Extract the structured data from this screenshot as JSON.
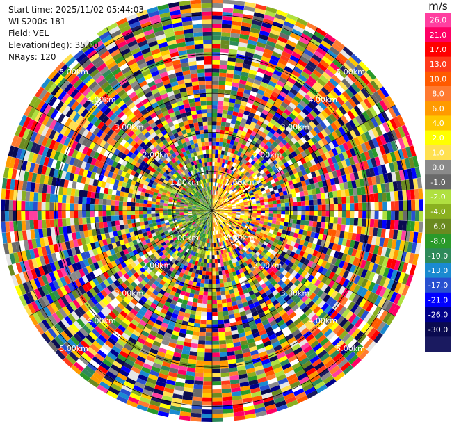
{
  "info": {
    "start_time": "Start time: 2025/11/02 05:44:03",
    "station": "WLS200s-181",
    "field": "Field: VEL",
    "elevation": "Elevation(deg): 35.00",
    "nrays": "NRays: 120"
  },
  "colorbar": {
    "unit": "m/s",
    "levels": [
      {
        "label": "26.0",
        "color": "#ff3fa0"
      },
      {
        "label": "21.0",
        "color": "#ff0064"
      },
      {
        "label": "17.0",
        "color": "#ff0000"
      },
      {
        "label": "13.0",
        "color": "#ff3a1a"
      },
      {
        "label": "10.0",
        "color": "#ff5a00"
      },
      {
        "label": "8.0",
        "color": "#ff7a30"
      },
      {
        "label": "6.0",
        "color": "#ff9a00"
      },
      {
        "label": "4.0",
        "color": "#ffc800"
      },
      {
        "label": "2.0",
        "color": "#ffff00"
      },
      {
        "label": "1.0",
        "color": "#ffe050"
      },
      {
        "label": "0.0",
        "color": "#8a8a8a"
      },
      {
        "label": "-1.0",
        "color": "#6a6a6a"
      },
      {
        "label": "-2.0",
        "color": "#b0e040"
      },
      {
        "label": "-4.0",
        "color": "#8ab020"
      },
      {
        "label": "-6.0",
        "color": "#6a8a20"
      },
      {
        "label": "-8.0",
        "color": "#2a9a2a"
      },
      {
        "label": "-10.0",
        "color": "#2e8a5a"
      },
      {
        "label": "-13.0",
        "color": "#1a8ad0"
      },
      {
        "label": "-17.0",
        "color": "#2850d0"
      },
      {
        "label": "-21.0",
        "color": "#0000ff"
      },
      {
        "label": "-26.0",
        "color": "#00008a"
      },
      {
        "label": "-30.0",
        "color": "#0a0a50"
      },
      {
        "label": "",
        "color": "#1a1a60"
      }
    ]
  },
  "chart_data": {
    "type": "heatmap",
    "subtype": "polar-ppi",
    "field": "VEL",
    "unit": "m/s",
    "elevation_deg": 35.0,
    "nrays": 120,
    "range_rings_km": [
      1.0,
      2.0,
      3.0,
      4.0,
      5.0
    ],
    "range_ring_labels": [
      "1.00km",
      "2.00km",
      "3.00km",
      "4.00km",
      "5.00km"
    ],
    "colorbar_ticks": [
      26.0,
      21.0,
      17.0,
      13.0,
      10.0,
      8.0,
      6.0,
      4.0,
      2.0,
      1.0,
      0.0,
      -1.0,
      -2.0,
      -4.0,
      -6.0,
      -8.0,
      -10.0,
      -13.0,
      -17.0,
      -21.0,
      -26.0,
      -30.0
    ],
    "pattern_note_near_field": "positive (yellow/orange) on east side, negative (green) on west side within ~1.5 km",
    "outer_field": "noise-like, all bins mixed"
  }
}
